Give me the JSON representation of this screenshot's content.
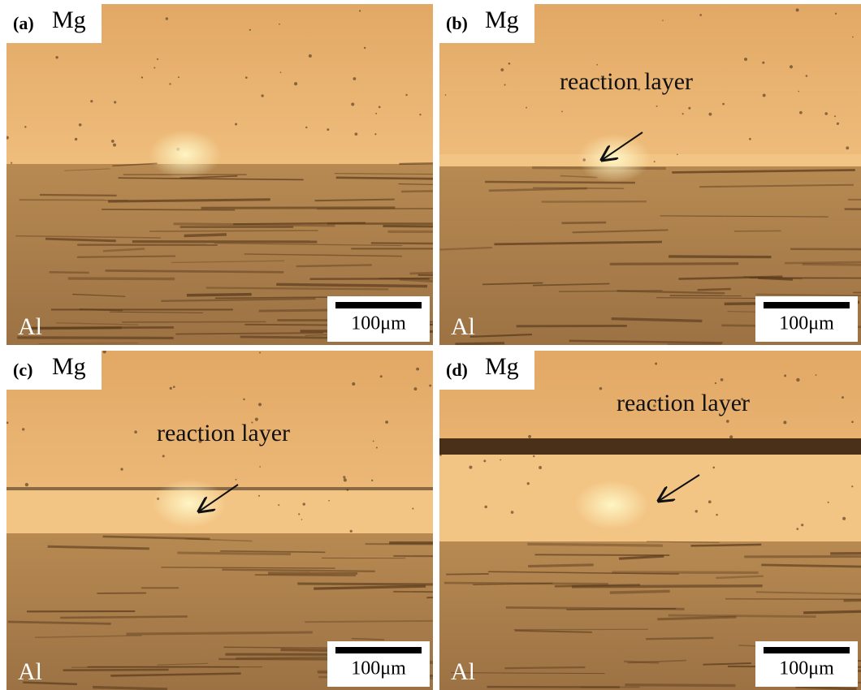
{
  "panels": [
    {
      "label": "(a)",
      "top_material": "Mg",
      "bottom_material": "Al",
      "scale_bar": "100μm"
    },
    {
      "label": "(b)",
      "top_material": "Mg",
      "bottom_material": "Al",
      "scale_bar": "100μm",
      "annotation": "reaction layer"
    },
    {
      "label": "(c)",
      "top_material": "Mg",
      "bottom_material": "Al",
      "scale_bar": "100μm",
      "annotation": "reaction layer"
    },
    {
      "label": "(d)",
      "top_material": "Mg",
      "bottom_material": "Al",
      "scale_bar": "100μm",
      "annotation": "reaction layer"
    }
  ]
}
